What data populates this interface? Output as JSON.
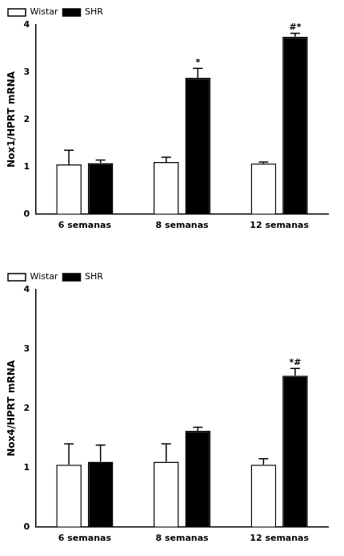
{
  "chart_data": [
    {
      "type": "bar",
      "y_label": "Nox1/HPRT mRNA",
      "categories": [
        "6 semanas",
        "8 semanas",
        "12 semanas"
      ],
      "series": [
        {
          "name": "Wistar",
          "color": "#ffffff",
          "values": [
            1.05,
            1.1,
            1.07
          ],
          "errors": [
            0.3,
            0.1,
            0.03
          ]
        },
        {
          "name": "SHR",
          "color": "#000000",
          "values": [
            1.08,
            2.88,
            3.75
          ],
          "errors": [
            0.06,
            0.2,
            0.07
          ],
          "annotations": [
            null,
            "*",
            "#*"
          ]
        }
      ],
      "ylim": [
        0,
        4
      ],
      "yticks": [
        0,
        1,
        2,
        3,
        4
      ],
      "grid": false,
      "legend": "top-left"
    },
    {
      "type": "bar",
      "y_label": "Nox4/HPRT mRNA",
      "categories": [
        "6 semanas",
        "8 semanas",
        "12 semanas"
      ],
      "series": [
        {
          "name": "Wistar",
          "color": "#ffffff",
          "values": [
            1.05,
            1.1,
            1.05
          ],
          "errors": [
            0.35,
            0.3,
            0.1
          ]
        },
        {
          "name": "SHR",
          "color": "#000000",
          "values": [
            1.1,
            1.62,
            2.55
          ],
          "errors": [
            0.28,
            0.06,
            0.12
          ],
          "annotations": [
            null,
            null,
            "*#"
          ]
        }
      ],
      "ylim": [
        0,
        4
      ],
      "yticks": [
        0,
        1,
        2,
        3,
        4
      ],
      "grid": false,
      "legend": "top-left"
    }
  ]
}
